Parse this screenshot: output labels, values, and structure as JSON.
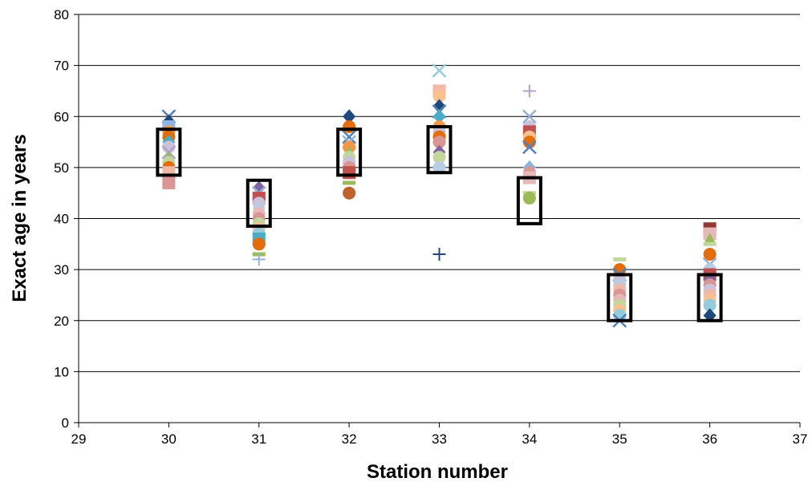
{
  "chart_data": {
    "type": "scatter",
    "title": "",
    "xlabel": "Station number",
    "ylabel": "Exact age in years",
    "xlim": [
      29,
      37
    ],
    "ylim": [
      0,
      80
    ],
    "x_ticks": [
      "29",
      "30",
      "31",
      "32",
      "33",
      "34",
      "35",
      "36",
      "37"
    ],
    "y_ticks": [
      "0",
      "10",
      "20",
      "30",
      "40",
      "50",
      "60",
      "70",
      "80"
    ],
    "grid": "horizontal",
    "legend": "none",
    "points": [
      {
        "x": 30,
        "y": 60,
        "marker": "x",
        "color": "#4f81bd"
      },
      {
        "x": 30,
        "y": 59,
        "marker": "diamond",
        "color": "#1f497d"
      },
      {
        "x": 30,
        "y": 58,
        "marker": "square",
        "color": "#8db3e2"
      },
      {
        "x": 30,
        "y": 57,
        "marker": "circle",
        "color": "#f79646"
      },
      {
        "x": 30,
        "y": 56,
        "marker": "circle",
        "color": "#e46c0a"
      },
      {
        "x": 30,
        "y": 55,
        "marker": "diamond",
        "color": "#4bacc6"
      },
      {
        "x": 30,
        "y": 54,
        "marker": "circle",
        "color": "#ccc1da"
      },
      {
        "x": 30,
        "y": 53,
        "marker": "x",
        "color": "#b3a2c7"
      },
      {
        "x": 30,
        "y": 52,
        "marker": "triangle",
        "color": "#9bbb59"
      },
      {
        "x": 30,
        "y": 51,
        "marker": "circle",
        "color": "#c3d69b"
      },
      {
        "x": 30,
        "y": 50,
        "marker": "circle",
        "color": "#e46c0a"
      },
      {
        "x": 30,
        "y": 49,
        "marker": "square",
        "color": "#f2b8a6"
      },
      {
        "x": 30,
        "y": 47,
        "marker": "square",
        "color": "#d99694"
      },
      {
        "x": 31,
        "y": 46,
        "marker": "diamond",
        "color": "#8064a2"
      },
      {
        "x": 31,
        "y": 45,
        "marker": "x",
        "color": "#95b3d7"
      },
      {
        "x": 31,
        "y": 44,
        "marker": "square",
        "color": "#c0504d"
      },
      {
        "x": 31,
        "y": 43,
        "marker": "circle",
        "color": "#ccc1da"
      },
      {
        "x": 31,
        "y": 42,
        "marker": "diamond",
        "color": "#b9cde5"
      },
      {
        "x": 31,
        "y": 41,
        "marker": "circle",
        "color": "#e6b9b8"
      },
      {
        "x": 31,
        "y": 40,
        "marker": "circle",
        "color": "#d99694"
      },
      {
        "x": 31,
        "y": 39,
        "marker": "circle",
        "color": "#c3d69b"
      },
      {
        "x": 31,
        "y": 38,
        "marker": "circle",
        "color": "#fac090"
      },
      {
        "x": 31,
        "y": 37,
        "marker": "circle",
        "color": "#93cddd"
      },
      {
        "x": 31,
        "y": 36,
        "marker": "square",
        "color": "#4bacc6"
      },
      {
        "x": 31,
        "y": 35,
        "marker": "circle",
        "color": "#e46c0a"
      },
      {
        "x": 31,
        "y": 33,
        "marker": "dash",
        "color": "#9bbb59"
      },
      {
        "x": 31,
        "y": 32,
        "marker": "plus",
        "color": "#95b3d7"
      },
      {
        "x": 32,
        "y": 60,
        "marker": "diamond",
        "color": "#1f497d"
      },
      {
        "x": 32,
        "y": 58,
        "marker": "circle",
        "color": "#e46c0a"
      },
      {
        "x": 32,
        "y": 56,
        "marker": "x",
        "color": "#4f81bd"
      },
      {
        "x": 32,
        "y": 55,
        "marker": "x",
        "color": "#95b3d7"
      },
      {
        "x": 32,
        "y": 54,
        "marker": "circle",
        "color": "#f79646"
      },
      {
        "x": 32,
        "y": 53,
        "marker": "triangle",
        "color": "#9bbb59"
      },
      {
        "x": 32,
        "y": 52,
        "marker": "circle",
        "color": "#c3d69b"
      },
      {
        "x": 32,
        "y": 51,
        "marker": "circle",
        "color": "#ccc1da"
      },
      {
        "x": 32,
        "y": 50,
        "marker": "circle",
        "color": "#d99694"
      },
      {
        "x": 32,
        "y": 49,
        "marker": "square",
        "color": "#c0504d"
      },
      {
        "x": 32,
        "y": 47,
        "marker": "dash",
        "color": "#9bbb59"
      },
      {
        "x": 32,
        "y": 45,
        "marker": "circle",
        "color": "#c0622c"
      },
      {
        "x": 33,
        "y": 69,
        "marker": "x",
        "color": "#93cddd"
      },
      {
        "x": 33,
        "y": 65,
        "marker": "square",
        "color": "#f2b8a6"
      },
      {
        "x": 33,
        "y": 64,
        "marker": "circle",
        "color": "#fac090"
      },
      {
        "x": 33,
        "y": 62,
        "marker": "diamond",
        "color": "#1f497d"
      },
      {
        "x": 33,
        "y": 61,
        "marker": "x",
        "color": "#4f81bd"
      },
      {
        "x": 33,
        "y": 60,
        "marker": "diamond",
        "color": "#4bacc6"
      },
      {
        "x": 33,
        "y": 58,
        "marker": "circle",
        "color": "#f79646"
      },
      {
        "x": 33,
        "y": 57,
        "marker": "circle",
        "color": "#ccc1da"
      },
      {
        "x": 33,
        "y": 56,
        "marker": "circle",
        "color": "#e46c0a"
      },
      {
        "x": 33,
        "y": 55,
        "marker": "circle",
        "color": "#d99694"
      },
      {
        "x": 33,
        "y": 53,
        "marker": "diamond",
        "color": "#8064a2"
      },
      {
        "x": 33,
        "y": 52,
        "marker": "circle",
        "color": "#c3d69b"
      },
      {
        "x": 33,
        "y": 50,
        "marker": "circle",
        "color": "#b9cde5"
      },
      {
        "x": 33,
        "y": 33,
        "marker": "plus",
        "color": "#1f497d"
      },
      {
        "x": 34,
        "y": 65,
        "marker": "plus",
        "color": "#b3a2c7"
      },
      {
        "x": 34,
        "y": 60,
        "marker": "x",
        "color": "#95b3d7"
      },
      {
        "x": 34,
        "y": 58,
        "marker": "circle",
        "color": "#ccc1da"
      },
      {
        "x": 34,
        "y": 57,
        "marker": "square",
        "color": "#c0504d"
      },
      {
        "x": 34,
        "y": 56,
        "marker": "circle",
        "color": "#fac090"
      },
      {
        "x": 34,
        "y": 55,
        "marker": "circle",
        "color": "#e46c0a"
      },
      {
        "x": 34,
        "y": 54,
        "marker": "x",
        "color": "#4f81bd"
      },
      {
        "x": 34,
        "y": 50,
        "marker": "diamond",
        "color": "#8db3e2"
      },
      {
        "x": 34,
        "y": 49,
        "marker": "circle",
        "color": "#d99694"
      },
      {
        "x": 34,
        "y": 48,
        "marker": "square",
        "color": "#e6b9b8"
      },
      {
        "x": 34,
        "y": 45,
        "marker": "dash",
        "color": "#c3d69b"
      },
      {
        "x": 34,
        "y": 44,
        "marker": "circle",
        "color": "#9bbb59"
      },
      {
        "x": 35,
        "y": 32,
        "marker": "dash",
        "color": "#c3d69b"
      },
      {
        "x": 35,
        "y": 30,
        "marker": "circle",
        "color": "#e46c0a"
      },
      {
        "x": 35,
        "y": 29,
        "marker": "x",
        "color": "#4f81bd"
      },
      {
        "x": 35,
        "y": 28,
        "marker": "circle",
        "color": "#ccc1da"
      },
      {
        "x": 35,
        "y": 27,
        "marker": "circle",
        "color": "#b9cde5"
      },
      {
        "x": 35,
        "y": 26,
        "marker": "circle",
        "color": "#f2b8a6"
      },
      {
        "x": 35,
        "y": 25,
        "marker": "circle",
        "color": "#d99694"
      },
      {
        "x": 35,
        "y": 24,
        "marker": "circle",
        "color": "#e6b9b8"
      },
      {
        "x": 35,
        "y": 23,
        "marker": "circle",
        "color": "#c3d69b"
      },
      {
        "x": 35,
        "y": 22,
        "marker": "circle",
        "color": "#fac090"
      },
      {
        "x": 35,
        "y": 21,
        "marker": "circle",
        "color": "#93cddd"
      },
      {
        "x": 35,
        "y": 20,
        "marker": "x",
        "color": "#4f81bd"
      },
      {
        "x": 36,
        "y": 38,
        "marker": "square",
        "color": "#953735"
      },
      {
        "x": 36,
        "y": 37,
        "marker": "square",
        "color": "#e6b9b8"
      },
      {
        "x": 36,
        "y": 36,
        "marker": "triangle",
        "color": "#9bbb59"
      },
      {
        "x": 36,
        "y": 35,
        "marker": "dash",
        "color": "#c3d69b"
      },
      {
        "x": 36,
        "y": 33,
        "marker": "circle",
        "color": "#e46c0a"
      },
      {
        "x": 36,
        "y": 31,
        "marker": "x",
        "color": "#95b3d7"
      },
      {
        "x": 36,
        "y": 30,
        "marker": "circle",
        "color": "#b9cde5"
      },
      {
        "x": 36,
        "y": 29,
        "marker": "square",
        "color": "#c0504d"
      },
      {
        "x": 36,
        "y": 28,
        "marker": "diamond",
        "color": "#8064a2"
      },
      {
        "x": 36,
        "y": 27,
        "marker": "circle",
        "color": "#d99694"
      },
      {
        "x": 36,
        "y": 26,
        "marker": "circle",
        "color": "#ccc1da"
      },
      {
        "x": 36,
        "y": 25,
        "marker": "circle",
        "color": "#f2b8a6"
      },
      {
        "x": 36,
        "y": 24,
        "marker": "circle",
        "color": "#fac090"
      },
      {
        "x": 36,
        "y": 23,
        "marker": "circle",
        "color": "#93cddd"
      },
      {
        "x": 36,
        "y": 21,
        "marker": "diamond",
        "color": "#1f497d"
      }
    ],
    "boxes": [
      {
        "x": 30,
        "y_low": 48.5,
        "y_high": 57.5
      },
      {
        "x": 31,
        "y_low": 38.5,
        "y_high": 47.5
      },
      {
        "x": 32,
        "y_low": 48.5,
        "y_high": 57.5
      },
      {
        "x": 33,
        "y_low": 49,
        "y_high": 58
      },
      {
        "x": 34,
        "y_low": 39,
        "y_high": 48
      },
      {
        "x": 35,
        "y_low": 20,
        "y_high": 29
      },
      {
        "x": 36,
        "y_low": 20,
        "y_high": 29
      }
    ],
    "box_color": "#000000",
    "grid_color": "#000000"
  }
}
